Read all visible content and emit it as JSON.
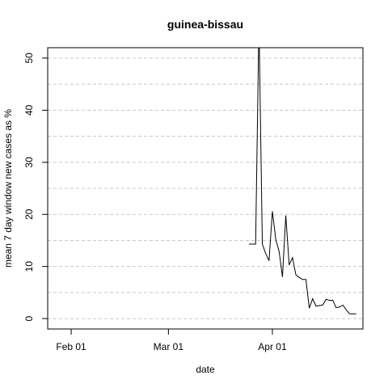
{
  "chart_data": {
    "type": "line",
    "title": "guinea-bissau",
    "xlabel": "date",
    "ylabel": "mean  7  day window new cases as %",
    "x_ticks": [
      {
        "date": "2020-02-01",
        "label": "Feb 01"
      },
      {
        "date": "2020-03-01",
        "label": "Mar 01"
      },
      {
        "date": "2020-04-01",
        "label": "Apr 01"
      }
    ],
    "y_ticks": [
      0,
      10,
      20,
      30,
      40,
      50
    ],
    "xlim": [
      "2020-01-25",
      "2020-04-28"
    ],
    "ylim": [
      -2,
      52
    ],
    "grid": {
      "horizontal": true,
      "vertical": false,
      "dashed_levels": [
        0,
        10,
        20,
        30,
        40,
        50
      ],
      "dotted_levels": [
        5,
        15,
        25,
        35,
        45
      ]
    },
    "series": [
      {
        "color": "#000000",
        "x": [
          "2020-03-25",
          "2020-03-26",
          "2020-03-27",
          "2020-03-28",
          "2020-03-29",
          "2020-03-30",
          "2020-03-31",
          "2020-04-01",
          "2020-04-02",
          "2020-04-03",
          "2020-04-04",
          "2020-04-05",
          "2020-04-06",
          "2020-04-07",
          "2020-04-08",
          "2020-04-09",
          "2020-04-10",
          "2020-04-11",
          "2020-04-12",
          "2020-04-13",
          "2020-04-14",
          "2020-04-15",
          "2020-04-16",
          "2020-04-17",
          "2020-04-18",
          "2020-04-19",
          "2020-04-20",
          "2020-04-21",
          "2020-04-22",
          "2020-04-23",
          "2020-04-24",
          "2020-04-25",
          "2020-04-26"
        ],
        "y": [
          14.3,
          14.3,
          14.3,
          57.1,
          14.3,
          12.5,
          11.1,
          20.6,
          15.2,
          12.9,
          8.0,
          19.8,
          10.3,
          11.7,
          8.4,
          7.9,
          7.5,
          7.5,
          2.0,
          3.8,
          2.4,
          2.5,
          2.6,
          3.7,
          3.5,
          3.5,
          2.1,
          2.2,
          2.6,
          1.7,
          0.9,
          0.9,
          0.9
        ]
      }
    ]
  }
}
